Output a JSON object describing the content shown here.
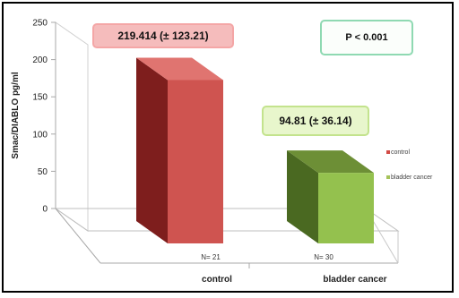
{
  "chart_data": {
    "type": "bar",
    "ylabel": "Smac/DIABLO pg/ml",
    "yticks": [
      "0",
      "50",
      "100",
      "150",
      "200",
      "250"
    ],
    "ylim": [
      0,
      250
    ],
    "categories": [
      "control",
      "bladder cancer"
    ],
    "values": [
      219.414,
      94.81
    ],
    "value_labels": [
      "219.414 (± 123.21)",
      "94.81 (± 36.14)"
    ],
    "n_labels": [
      "N= 21",
      "N= 30"
    ],
    "legend": [
      "control",
      "bladder cancer"
    ],
    "legend_placement": "right",
    "annotation": "P < 0.001",
    "grid": false,
    "colors": {
      "control_front": "#cf5450",
      "control_side": "#7e1e1d",
      "control_top": "#e07470",
      "bladder_front": "#94c14e",
      "bladder_side": "#4a6921",
      "bladder_top": "#6d8f36",
      "legend_control": "#d24b46",
      "legend_bladder": "#a6c35a"
    }
  }
}
